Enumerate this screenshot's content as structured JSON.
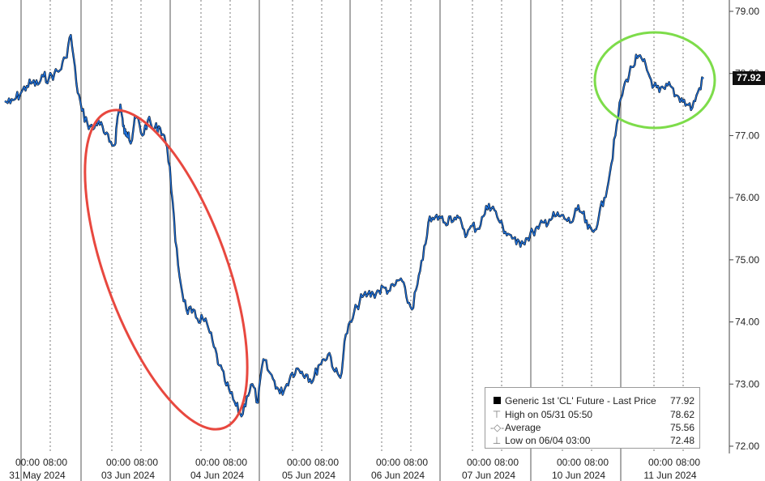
{
  "chart_data": {
    "type": "line",
    "title": "",
    "xlabel": "",
    "ylabel": "",
    "ylim": [
      72.0,
      79.0
    ],
    "y_ticks": [
      "79.00",
      "78.00",
      "77.00",
      "76.00",
      "75.00",
      "74.00",
      "73.00",
      "72.00"
    ],
    "y_tick_values": [
      79,
      78,
      77,
      76,
      75,
      74,
      73,
      72
    ],
    "axis_side": "right",
    "grid": "vertical dotted",
    "x_time_labels": [
      "00:00",
      "08:00",
      "00:00",
      "08:00",
      "00:00",
      "08:00",
      "00:00",
      "08:00",
      "00:00",
      "08:00",
      "00:00",
      "08:00",
      "00:00",
      "08:00",
      "00:00",
      "08:00"
    ],
    "x_date_labels": [
      "31 May 2024",
      "03 Jun 2024",
      "04 Jun 2024",
      "05 Jun 2024",
      "06 Jun 2024",
      "07 Jun 2024",
      "10 Jun 2024",
      "11 Jun 2024"
    ],
    "series": [
      {
        "name": "Generic 1st 'CL' Future - Last Price",
        "color": "#1f6fd6",
        "x": [
          0,
          2,
          4,
          6,
          8,
          10,
          12,
          14,
          16,
          18,
          20,
          22,
          24,
          26,
          28,
          30,
          32,
          34,
          36,
          38,
          40,
          41,
          42,
          43,
          44,
          45,
          46,
          47,
          48,
          50,
          52,
          54,
          56,
          58,
          60,
          62,
          64,
          66,
          68,
          70,
          72,
          74,
          76,
          78,
          80,
          82,
          84,
          86,
          88,
          90,
          92,
          94,
          96,
          98,
          100,
          102,
          104,
          106,
          108,
          110,
          112,
          114,
          116,
          118,
          120,
          122,
          124,
          126,
          128,
          130,
          132,
          134,
          136,
          138,
          140,
          142,
          144,
          146,
          148,
          150,
          152,
          154,
          156,
          158,
          160,
          162,
          164,
          166,
          168,
          170,
          172,
          174,
          176,
          178,
          180,
          182,
          184,
          186,
          188,
          190,
          192,
          194,
          196,
          198,
          200
        ],
        "values": [
          77.55,
          77.52,
          77.6,
          77.7,
          77.8,
          77.85,
          77.82,
          77.95,
          77.92,
          78.0,
          78.05,
          78.25,
          78.62,
          77.85,
          77.4,
          77.2,
          77.1,
          77.25,
          77.05,
          76.9,
          76.85,
          77.3,
          77.5,
          77.15,
          77.0,
          77.05,
          76.9,
          77.2,
          77.3,
          77.0,
          77.25,
          77.1,
          77.15,
          77.0,
          76.5,
          75.3,
          74.6,
          74.2,
          74.15,
          74.05,
          74.05,
          73.9,
          73.6,
          73.3,
          73.05,
          72.85,
          72.65,
          72.48,
          72.8,
          73.0,
          72.7,
          73.4,
          73.2,
          73.05,
          72.85,
          72.95,
          73.15,
          73.25,
          73.2,
          73.15,
          73.05,
          73.3,
          73.4,
          73.5,
          73.2,
          73.1,
          73.8,
          74.0,
          74.25,
          74.4,
          74.45,
          74.45,
          74.5,
          74.55,
          74.5,
          74.6,
          74.7,
          74.4,
          74.2,
          74.6,
          75.0,
          75.6,
          75.65,
          75.7,
          75.6,
          75.7,
          75.65,
          75.6,
          75.4,
          75.55,
          75.5,
          75.7,
          75.9,
          75.8,
          75.6,
          75.45,
          75.4,
          75.25,
          75.3,
          75.35,
          75.45,
          75.5,
          75.6,
          75.65,
          75.7
        ]
      }
    ],
    "series_tail": {
      "x": [
        202,
        204,
        206,
        208,
        210,
        212,
        214,
        216,
        218,
        220,
        222,
        224,
        226,
        228,
        230,
        232,
        234,
        236,
        238,
        240,
        242,
        244,
        246,
        248,
        250,
        252,
        254
      ],
      "values": [
        75.7,
        75.65,
        75.6,
        75.8,
        75.75,
        75.5,
        75.45,
        75.7,
        76.0,
        76.4,
        77.0,
        77.6,
        77.9,
        78.1,
        78.25,
        78.2,
        78.0,
        77.8,
        77.7,
        77.75,
        77.8,
        77.65,
        77.6,
        77.5,
        77.45,
        77.7,
        77.92
      ]
    },
    "last_value_tag": "77.92",
    "legend": {
      "title": "Generic 1st 'CL' Future - Last Price",
      "last_value": "77.92",
      "rows": [
        {
          "label": "High on 05/31 05:50",
          "value": "78.62"
        },
        {
          "label": "Average",
          "value": "75.56"
        },
        {
          "label": "Low on 06/04 03:00",
          "value": "72.48"
        }
      ]
    },
    "annotations": [
      {
        "shape": "ellipse",
        "color": "#e8483f",
        "meaning": "sharp decline 03 Jun - 04 Jun"
      },
      {
        "shape": "ellipse",
        "color": "#7ddc4a",
        "meaning": "recovery peak 10 Jun - 11 Jun"
      }
    ]
  }
}
